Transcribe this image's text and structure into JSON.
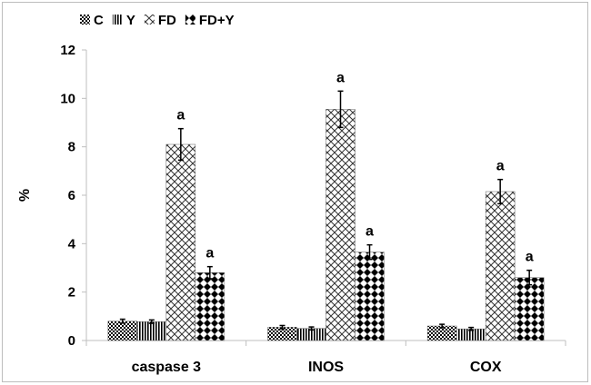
{
  "chart_data": {
    "type": "bar",
    "title": "",
    "xlabel": "",
    "ylabel": "%",
    "ylim": [
      0,
      12
    ],
    "yticks": [
      0,
      2,
      4,
      6,
      8,
      10,
      12
    ],
    "grid": false,
    "legend_position": "top-left",
    "categories": [
      "caspase 3",
      "INOS",
      "COX"
    ],
    "series": [
      {
        "name": "C",
        "pattern": "checker",
        "values": [
          0.8,
          0.55,
          0.6
        ],
        "errors": [
          0.08,
          0.07,
          0.07
        ],
        "labels": [
          "",
          "",
          ""
        ]
      },
      {
        "name": "Y",
        "pattern": "vertical-lines",
        "values": [
          0.78,
          0.5,
          0.48
        ],
        "errors": [
          0.07,
          0.06,
          0.06
        ],
        "labels": [
          "",
          "",
          ""
        ]
      },
      {
        "name": "FD",
        "pattern": "crosshatch",
        "values": [
          8.1,
          9.55,
          6.15
        ],
        "errors": [
          0.65,
          0.75,
          0.5
        ],
        "labels": [
          "a",
          "a",
          "a"
        ]
      },
      {
        "name": "FD+Y",
        "pattern": "diamonds",
        "values": [
          2.8,
          3.65,
          2.6
        ],
        "errors": [
          0.25,
          0.3,
          0.3
        ],
        "labels": [
          "a",
          "a",
          "a"
        ]
      }
    ],
    "colors": {
      "bar_fill": "#000000",
      "bar_bg": "#ffffff",
      "axis": "#bfbfbf",
      "error": "#000000"
    }
  }
}
